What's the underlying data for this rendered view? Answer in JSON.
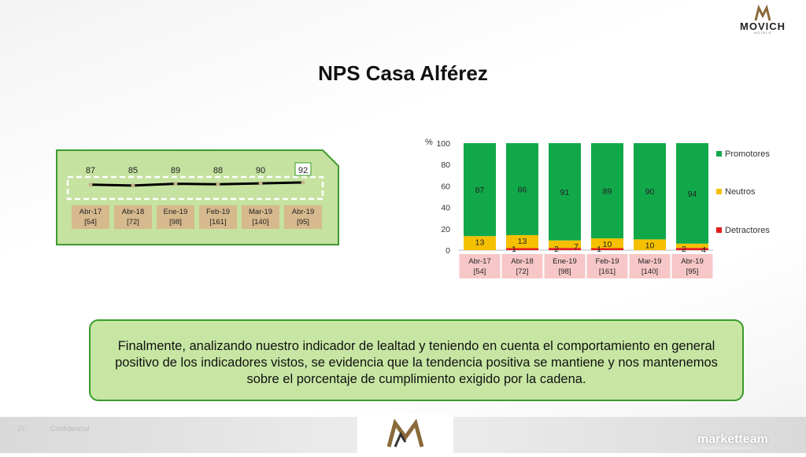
{
  "logo": {
    "text": "MOVICH",
    "sub": "HOTELS"
  },
  "title": "NPS Casa Alférez",
  "nps_chart": {
    "type": "line",
    "categories": [
      "Abr-17",
      "Abr-18",
      "Ene-19",
      "Feb-19",
      "Mar-19",
      "Abr-19"
    ],
    "sample_sizes": [
      "[54]",
      "[72]",
      "[98]",
      "[161]",
      "[140]",
      "[95]"
    ],
    "values": [
      87,
      85,
      89,
      88,
      90,
      92
    ],
    "highlight_index": 5,
    "colors": {
      "panel": "#c6e2a1",
      "panel_border": "#3c9a2d",
      "label_bg": "#d6b98d",
      "line": "#000000",
      "highlight_box": "#3c9a2d"
    }
  },
  "chart_data": {
    "type": "bar",
    "stacked": true,
    "categories": [
      "Abr-17",
      "Abr-18",
      "Ene-19",
      "Feb-19",
      "Mar-19",
      "Abr-19"
    ],
    "sample_sizes": [
      "[54]",
      "[72]",
      "[98]",
      "[161]",
      "[140]",
      "[95]"
    ],
    "series": [
      {
        "name": "Promotores",
        "values": [
          87,
          86,
          91,
          89,
          90,
          94
        ],
        "color": "#11a84a"
      },
      {
        "name": "Neutros",
        "values": [
          13,
          13,
          7,
          10,
          10,
          4
        ],
        "color": "#f5c000"
      },
      {
        "name": "Detractores",
        "values": [
          0,
          1,
          2,
          1,
          0,
          2
        ],
        "color": "#e41c1c"
      }
    ],
    "ylabel": "%",
    "yticks": [
      0,
      20,
      40,
      60,
      80,
      100
    ],
    "ylim": [
      0,
      100
    ],
    "legend": "right",
    "label_bg": "#f7c7c7"
  },
  "note": {
    "text": "Finalmente, analizando nuestro indicador de lealtad y teniendo en cuenta el comportamiento en general positivo de los indicadores vistos, se evidencia que la tendencia positiva se mantiene y nos mantenemos sobre el porcentaje de cumplimiento exigido por la cadena."
  },
  "footer": {
    "page": "27",
    "confidential": "Confidencial",
    "brand": "marketteam",
    "brand_sub": "CREAMOS RESULTADOS"
  }
}
